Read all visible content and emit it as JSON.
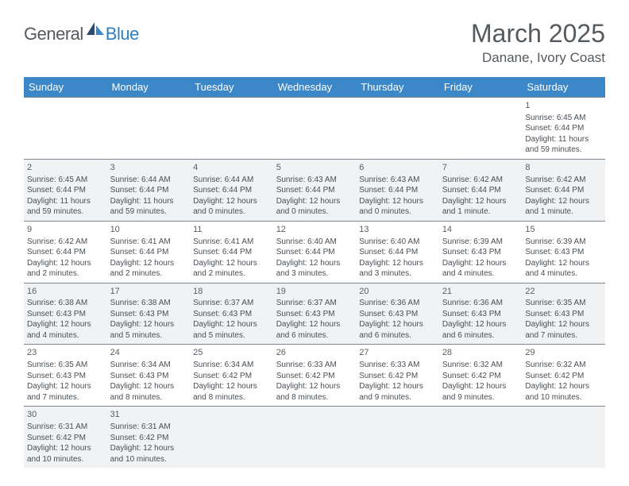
{
  "brand": {
    "name": "General",
    "suffix": "Blue"
  },
  "title": "March 2025",
  "location": "Danane, Ivory Coast",
  "colors": {
    "header_bg": "#3b87c8",
    "header_text": "#ffffff",
    "alt_row_bg": "#f0f2f4",
    "border": "#808690",
    "text": "#4a4f54",
    "title": "#555a5f",
    "brand_accent": "#2b7fc2"
  },
  "weekdays": [
    "Sunday",
    "Monday",
    "Tuesday",
    "Wednesday",
    "Thursday",
    "Friday",
    "Saturday"
  ],
  "weeks": [
    {
      "alt": false,
      "days": [
        null,
        null,
        null,
        null,
        null,
        null,
        {
          "n": "1",
          "sunrise": "Sunrise: 6:45 AM",
          "sunset": "Sunset: 6:44 PM",
          "daylight": "Daylight: 11 hours and 59 minutes."
        }
      ]
    },
    {
      "alt": true,
      "days": [
        {
          "n": "2",
          "sunrise": "Sunrise: 6:45 AM",
          "sunset": "Sunset: 6:44 PM",
          "daylight": "Daylight: 11 hours and 59 minutes."
        },
        {
          "n": "3",
          "sunrise": "Sunrise: 6:44 AM",
          "sunset": "Sunset: 6:44 PM",
          "daylight": "Daylight: 11 hours and 59 minutes."
        },
        {
          "n": "4",
          "sunrise": "Sunrise: 6:44 AM",
          "sunset": "Sunset: 6:44 PM",
          "daylight": "Daylight: 12 hours and 0 minutes."
        },
        {
          "n": "5",
          "sunrise": "Sunrise: 6:43 AM",
          "sunset": "Sunset: 6:44 PM",
          "daylight": "Daylight: 12 hours and 0 minutes."
        },
        {
          "n": "6",
          "sunrise": "Sunrise: 6:43 AM",
          "sunset": "Sunset: 6:44 PM",
          "daylight": "Daylight: 12 hours and 0 minutes."
        },
        {
          "n": "7",
          "sunrise": "Sunrise: 6:42 AM",
          "sunset": "Sunset: 6:44 PM",
          "daylight": "Daylight: 12 hours and 1 minute."
        },
        {
          "n": "8",
          "sunrise": "Sunrise: 6:42 AM",
          "sunset": "Sunset: 6:44 PM",
          "daylight": "Daylight: 12 hours and 1 minute."
        }
      ]
    },
    {
      "alt": false,
      "days": [
        {
          "n": "9",
          "sunrise": "Sunrise: 6:42 AM",
          "sunset": "Sunset: 6:44 PM",
          "daylight": "Daylight: 12 hours and 2 minutes."
        },
        {
          "n": "10",
          "sunrise": "Sunrise: 6:41 AM",
          "sunset": "Sunset: 6:44 PM",
          "daylight": "Daylight: 12 hours and 2 minutes."
        },
        {
          "n": "11",
          "sunrise": "Sunrise: 6:41 AM",
          "sunset": "Sunset: 6:44 PM",
          "daylight": "Daylight: 12 hours and 2 minutes."
        },
        {
          "n": "12",
          "sunrise": "Sunrise: 6:40 AM",
          "sunset": "Sunset: 6:44 PM",
          "daylight": "Daylight: 12 hours and 3 minutes."
        },
        {
          "n": "13",
          "sunrise": "Sunrise: 6:40 AM",
          "sunset": "Sunset: 6:44 PM",
          "daylight": "Daylight: 12 hours and 3 minutes."
        },
        {
          "n": "14",
          "sunrise": "Sunrise: 6:39 AM",
          "sunset": "Sunset: 6:43 PM",
          "daylight": "Daylight: 12 hours and 4 minutes."
        },
        {
          "n": "15",
          "sunrise": "Sunrise: 6:39 AM",
          "sunset": "Sunset: 6:43 PM",
          "daylight": "Daylight: 12 hours and 4 minutes."
        }
      ]
    },
    {
      "alt": true,
      "days": [
        {
          "n": "16",
          "sunrise": "Sunrise: 6:38 AM",
          "sunset": "Sunset: 6:43 PM",
          "daylight": "Daylight: 12 hours and 4 minutes."
        },
        {
          "n": "17",
          "sunrise": "Sunrise: 6:38 AM",
          "sunset": "Sunset: 6:43 PM",
          "daylight": "Daylight: 12 hours and 5 minutes."
        },
        {
          "n": "18",
          "sunrise": "Sunrise: 6:37 AM",
          "sunset": "Sunset: 6:43 PM",
          "daylight": "Daylight: 12 hours and 5 minutes."
        },
        {
          "n": "19",
          "sunrise": "Sunrise: 6:37 AM",
          "sunset": "Sunset: 6:43 PM",
          "daylight": "Daylight: 12 hours and 6 minutes."
        },
        {
          "n": "20",
          "sunrise": "Sunrise: 6:36 AM",
          "sunset": "Sunset: 6:43 PM",
          "daylight": "Daylight: 12 hours and 6 minutes."
        },
        {
          "n": "21",
          "sunrise": "Sunrise: 6:36 AM",
          "sunset": "Sunset: 6:43 PM",
          "daylight": "Daylight: 12 hours and 6 minutes."
        },
        {
          "n": "22",
          "sunrise": "Sunrise: 6:35 AM",
          "sunset": "Sunset: 6:43 PM",
          "daylight": "Daylight: 12 hours and 7 minutes."
        }
      ]
    },
    {
      "alt": false,
      "days": [
        {
          "n": "23",
          "sunrise": "Sunrise: 6:35 AM",
          "sunset": "Sunset: 6:43 PM",
          "daylight": "Daylight: 12 hours and 7 minutes."
        },
        {
          "n": "24",
          "sunrise": "Sunrise: 6:34 AM",
          "sunset": "Sunset: 6:43 PM",
          "daylight": "Daylight: 12 hours and 8 minutes."
        },
        {
          "n": "25",
          "sunrise": "Sunrise: 6:34 AM",
          "sunset": "Sunset: 6:42 PM",
          "daylight": "Daylight: 12 hours and 8 minutes."
        },
        {
          "n": "26",
          "sunrise": "Sunrise: 6:33 AM",
          "sunset": "Sunset: 6:42 PM",
          "daylight": "Daylight: 12 hours and 8 minutes."
        },
        {
          "n": "27",
          "sunrise": "Sunrise: 6:33 AM",
          "sunset": "Sunset: 6:42 PM",
          "daylight": "Daylight: 12 hours and 9 minutes."
        },
        {
          "n": "28",
          "sunrise": "Sunrise: 6:32 AM",
          "sunset": "Sunset: 6:42 PM",
          "daylight": "Daylight: 12 hours and 9 minutes."
        },
        {
          "n": "29",
          "sunrise": "Sunrise: 6:32 AM",
          "sunset": "Sunset: 6:42 PM",
          "daylight": "Daylight: 12 hours and 10 minutes."
        }
      ]
    },
    {
      "alt": true,
      "days": [
        {
          "n": "30",
          "sunrise": "Sunrise: 6:31 AM",
          "sunset": "Sunset: 6:42 PM",
          "daylight": "Daylight: 12 hours and 10 minutes."
        },
        {
          "n": "31",
          "sunrise": "Sunrise: 6:31 AM",
          "sunset": "Sunset: 6:42 PM",
          "daylight": "Daylight: 12 hours and 10 minutes."
        },
        null,
        null,
        null,
        null,
        null
      ]
    }
  ]
}
